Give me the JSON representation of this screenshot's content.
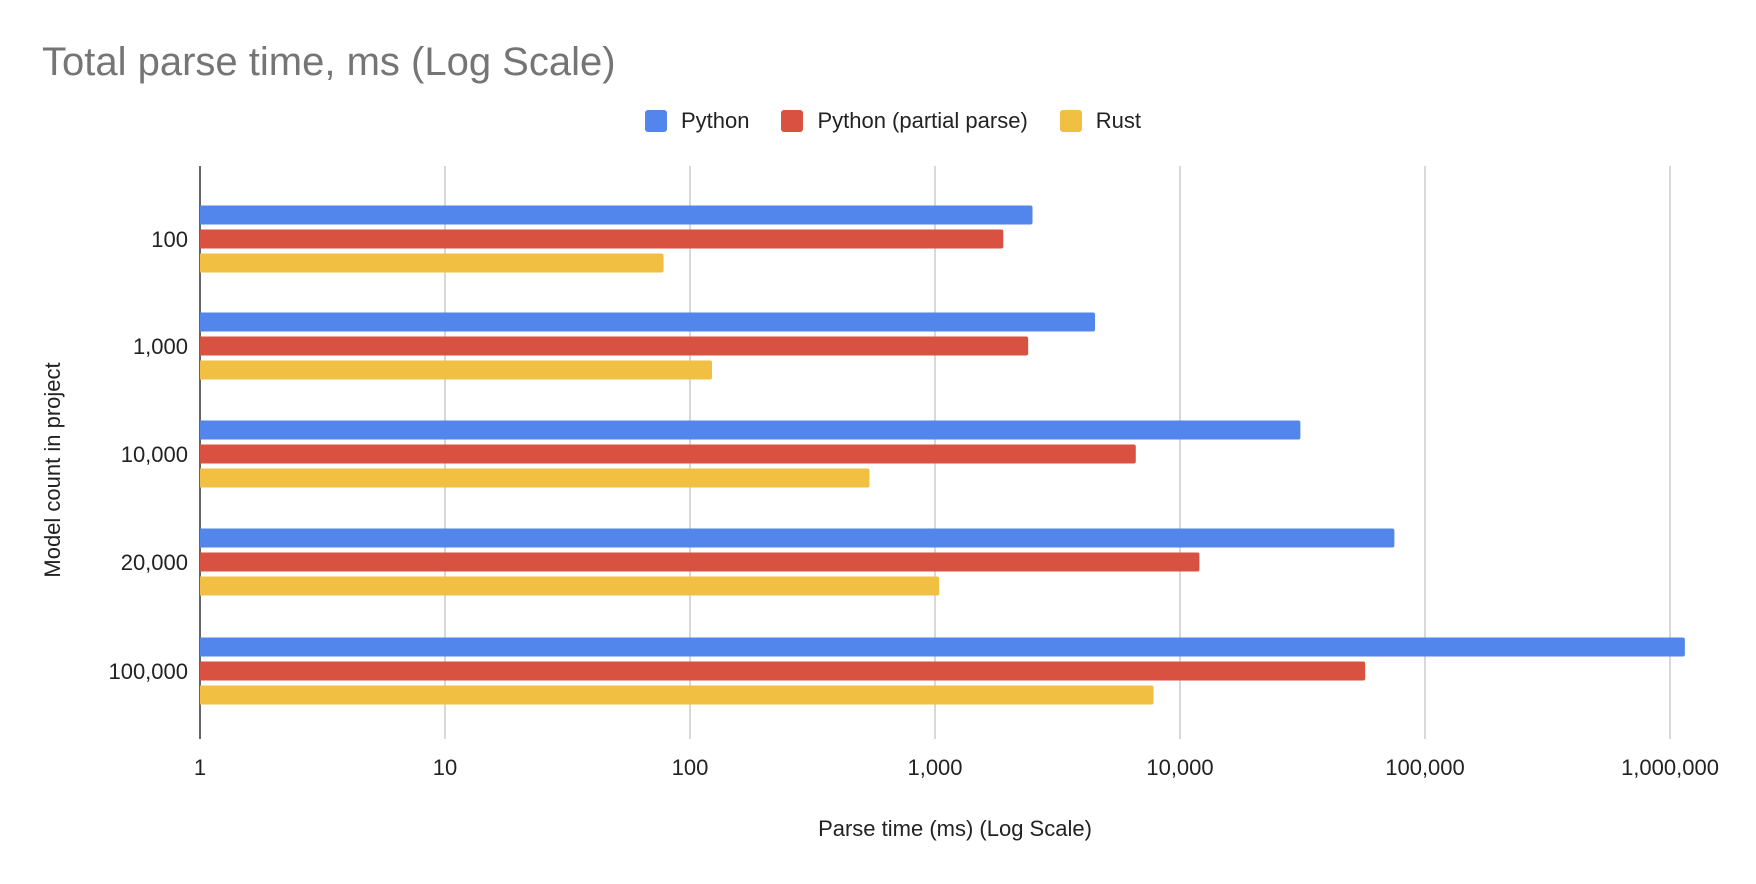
{
  "chart_data": {
    "type": "bar",
    "orientation": "horizontal",
    "title": "Total parse time, ms (Log Scale)",
    "xlabel": "Parse time (ms) (Log Scale)",
    "ylabel": "Model count in project",
    "x_scale": "log",
    "xlim": [
      1,
      1000000
    ],
    "x_ticks": [
      "1",
      "10",
      "100",
      "1,000",
      "10,000",
      "100,000",
      "1,000,000"
    ],
    "categories": [
      "100",
      "1,000",
      "10,000",
      "20,000",
      "100,000"
    ],
    "grid": "vertical",
    "legend": "top",
    "series": [
      {
        "name": "Python",
        "color": "#5386ec",
        "values": [
          2500,
          4500,
          31000,
          75000,
          1150000
        ]
      },
      {
        "name": "Python (partial parse)",
        "color": "#d95140",
        "values": [
          1900,
          2400,
          6600,
          12000,
          57000
        ]
      },
      {
        "name": "Rust",
        "color": "#f1bf42",
        "values": [
          78,
          123,
          540,
          1040,
          7800
        ]
      }
    ]
  }
}
